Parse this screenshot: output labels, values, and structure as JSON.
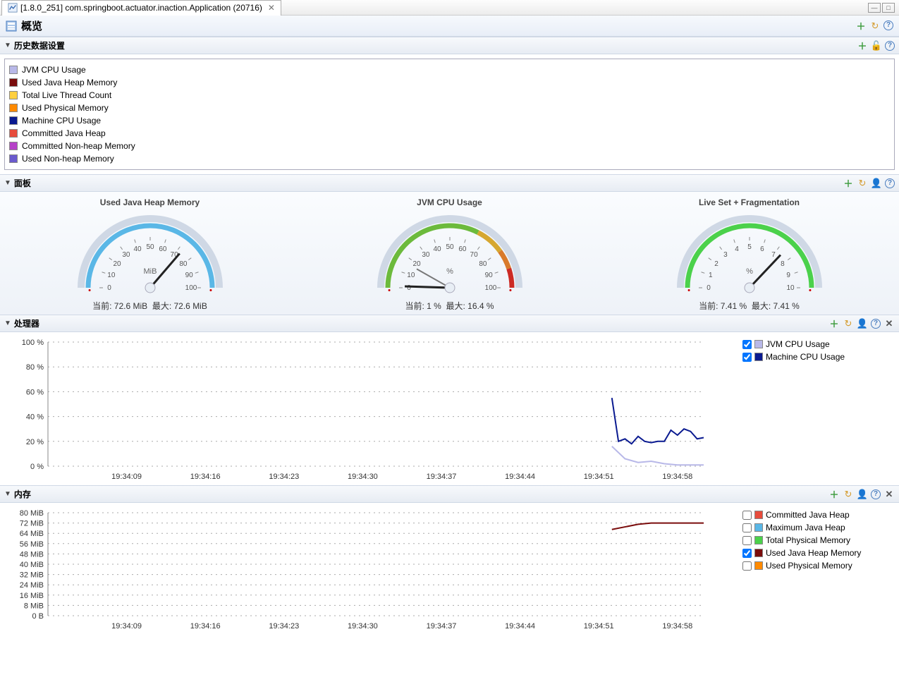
{
  "tab": {
    "label": "[1.8.0_251] com.springboot.actuator.inaction.Application (20716)"
  },
  "header": {
    "title": "概览"
  },
  "history": {
    "title": "历史数据设置",
    "items": [
      {
        "label": "JVM CPU Usage",
        "color": "#b8b8e8"
      },
      {
        "label": "Used Java Heap Memory",
        "color": "#7a0c0c"
      },
      {
        "label": "Total Live Thread Count",
        "color": "#ffd040"
      },
      {
        "label": "Used Physical Memory",
        "color": "#ff8a00"
      },
      {
        "label": "Machine CPU Usage",
        "color": "#0a1a90"
      },
      {
        "label": "Committed Java Heap",
        "color": "#e74c3c"
      },
      {
        "label": "Committed Non-heap Memory",
        "color": "#b642c8"
      },
      {
        "label": "Used Non-heap Memory",
        "color": "#6a5acd"
      }
    ]
  },
  "panels": {
    "title": "面板",
    "gauges": [
      {
        "title": "Used Java Heap Memory",
        "unit": "MiB",
        "min": 0,
        "max": 100,
        "value": 72.6,
        "tick_step": 10,
        "arc_color": "#5ab7e6",
        "cap_color": "#cfd8e5",
        "current_label": "当前: 72.6 MiB",
        "max_label": "最大: 72.6 MiB"
      },
      {
        "title": "JVM CPU Usage",
        "unit": "%",
        "min": 0,
        "max": 100,
        "value": 1,
        "secondary_value": 16.4,
        "tick_step": 10,
        "arc_segments": [
          {
            "from": 0,
            "to": 65,
            "color": "#6cba3c"
          },
          {
            "from": 65,
            "to": 80,
            "color": "#d6a730"
          },
          {
            "from": 80,
            "to": 90,
            "color": "#d97a2b"
          },
          {
            "from": 90,
            "to": 100,
            "color": "#cc2a24"
          }
        ],
        "cap_color": "#cfd8e5",
        "current_label": "当前: 1 %",
        "max_label": "最大: 16.4 %"
      },
      {
        "title": "Live Set + Fragmentation",
        "unit": "%",
        "min": 0,
        "max": 10,
        "value": 7.41,
        "tick_step": 1,
        "arc_color": "#4bd14b",
        "cap_color": "#cfd8e5",
        "current_label": "当前: 7.41 %",
        "max_label": "最大: 7.41 %"
      }
    ]
  },
  "cpu_chart": {
    "title": "处理器",
    "ylim": [
      0,
      100
    ],
    "ytick_step": 20,
    "y_suffix": " %",
    "x_labels": [
      "19:34:09",
      "19:34:16",
      "19:34:23",
      "19:34:30",
      "19:34:37",
      "19:34:44",
      "19:34:51",
      "19:34:58"
    ],
    "x_positions": [
      12,
      24,
      36,
      48,
      60,
      72,
      84,
      96
    ],
    "series": [
      {
        "label": "JVM CPU Usage",
        "color": "#b8b8e8",
        "checked": true,
        "points": [
          [
            86,
            16
          ],
          [
            88,
            6
          ],
          [
            90,
            3
          ],
          [
            92,
            4
          ],
          [
            94,
            2
          ],
          [
            96,
            1
          ],
          [
            98,
            1
          ],
          [
            100,
            1
          ]
        ]
      },
      {
        "label": "Machine CPU Usage",
        "color": "#0a1a90",
        "checked": true,
        "points": [
          [
            86,
            55
          ],
          [
            87,
            20
          ],
          [
            88,
            22
          ],
          [
            89,
            18
          ],
          [
            90,
            24
          ],
          [
            91,
            20
          ],
          [
            92,
            19
          ],
          [
            93,
            20
          ],
          [
            94,
            20
          ],
          [
            95,
            29
          ],
          [
            96,
            25
          ],
          [
            97,
            30
          ],
          [
            98,
            28
          ],
          [
            99,
            22
          ],
          [
            100,
            23
          ]
        ]
      }
    ]
  },
  "mem_chart": {
    "title": "内存",
    "ylim": [
      0,
      80
    ],
    "ytick_step": 8,
    "y_suffix": " MiB",
    "y_zero_label": "0 B",
    "x_labels": [
      "19:34:09",
      "19:34:16",
      "19:34:23",
      "19:34:30",
      "19:34:37",
      "19:34:44",
      "19:34:51",
      "19:34:58"
    ],
    "x_positions": [
      12,
      24,
      36,
      48,
      60,
      72,
      84,
      96
    ],
    "series": [
      {
        "label": "Committed Java Heap",
        "color": "#e74c3c",
        "checked": false,
        "points": []
      },
      {
        "label": "Maximum Java Heap",
        "color": "#5ab7e6",
        "checked": false,
        "points": []
      },
      {
        "label": "Total Physical Memory",
        "color": "#4bd14b",
        "checked": false,
        "points": []
      },
      {
        "label": "Used Java Heap Memory",
        "color": "#7a0c0c",
        "checked": true,
        "points": [
          [
            86,
            67
          ],
          [
            88,
            69
          ],
          [
            90,
            71
          ],
          [
            92,
            72
          ],
          [
            94,
            72
          ],
          [
            96,
            72
          ],
          [
            98,
            72
          ],
          [
            100,
            72
          ]
        ]
      },
      {
        "label": "Used Physical Memory",
        "color": "#ff8a00",
        "checked": false,
        "points": []
      }
    ]
  },
  "colors": {
    "plus": "#3a9a3a",
    "refresh": "#d49a2a",
    "person": "#888",
    "lock": "#c98c4a"
  }
}
